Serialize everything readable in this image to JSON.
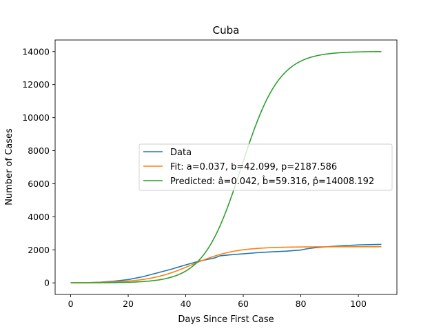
{
  "chart_data": {
    "type": "line",
    "title": "Cuba",
    "xlabel": "Days Since First Case",
    "ylabel": "Number of Cases",
    "xlim": [
      -5.4,
      113.4
    ],
    "ylim": [
      -700,
      14700
    ],
    "xticks": [
      0,
      20,
      40,
      60,
      80,
      100
    ],
    "yticks": [
      0,
      2000,
      4000,
      6000,
      8000,
      10000,
      12000,
      14000
    ],
    "grid": false,
    "legend_position": "center-right",
    "series": [
      {
        "name": "Data",
        "color": "#1f77b4",
        "x": [
          0,
          5,
          10,
          15,
          20,
          25,
          30,
          35,
          40,
          45,
          50,
          52,
          55,
          60,
          65,
          70,
          75,
          80,
          82,
          85,
          90,
          95,
          100,
          105,
          108
        ],
        "y": [
          0,
          10,
          40,
          100,
          200,
          370,
          600,
          830,
          1090,
          1330,
          1510,
          1640,
          1690,
          1760,
          1830,
          1880,
          1920,
          1990,
          2060,
          2130,
          2200,
          2250,
          2300,
          2320,
          2330
        ]
      },
      {
        "name": "Fit: a=0.037, b=42.099, p=2187.586",
        "color": "#ff7f0e",
        "model": {
          "a": 0.037,
          "b": 42.099,
          "p": 2187.586
        }
      },
      {
        "name": "Predicted: â=0.042, b̂=59.316, p̂=14008.192",
        "color": "#2ca02c",
        "model": {
          "a": 0.042,
          "b": 59.316,
          "p": 14008.192
        }
      }
    ]
  }
}
